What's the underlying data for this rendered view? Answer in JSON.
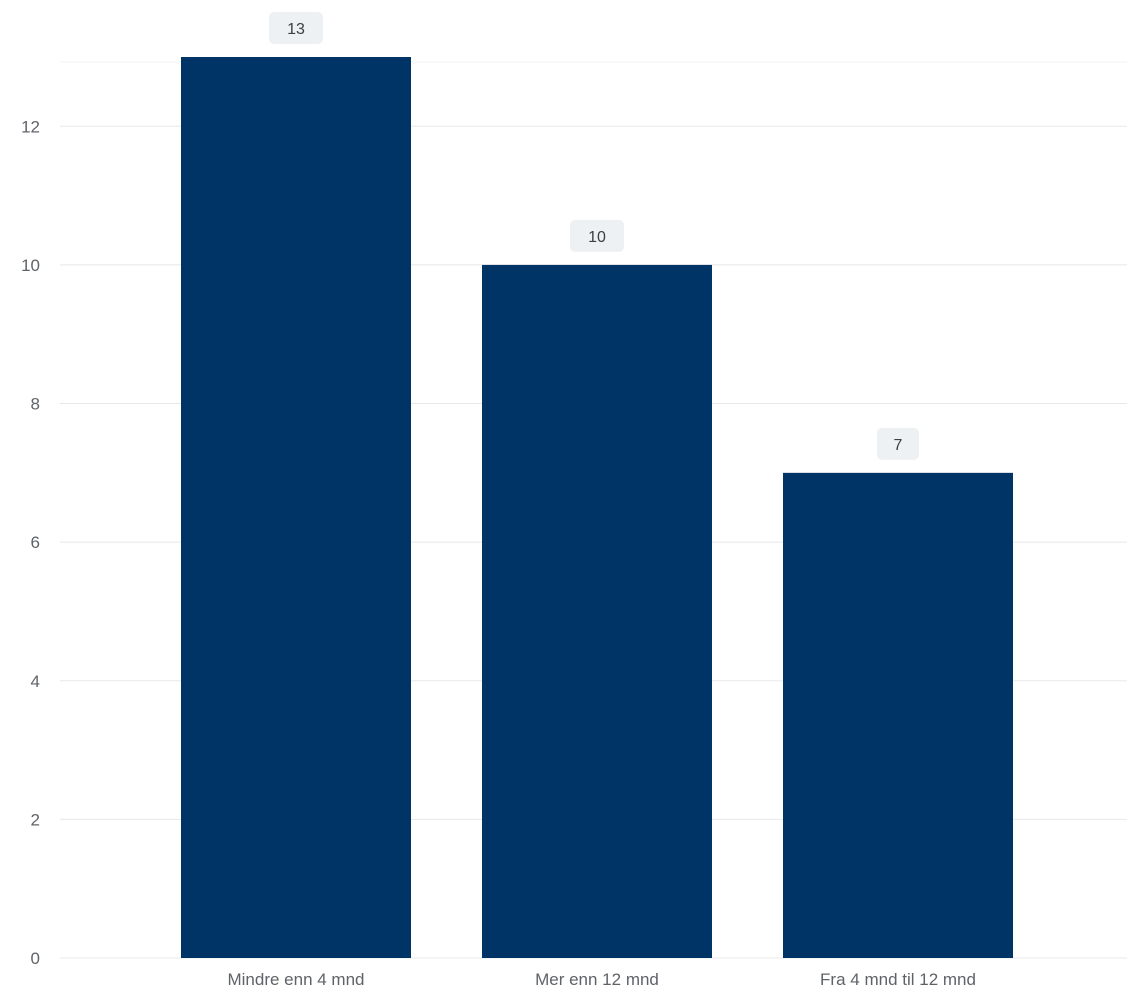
{
  "chart_data": {
    "type": "bar",
    "title": "",
    "xlabel": "",
    "ylabel": "",
    "categories": [
      "Mindre enn 4 mnd",
      "Mer enn 12 mnd",
      "Fra 4 mnd til 12 mnd"
    ],
    "values": [
      13,
      10,
      7
    ],
    "data_labels": [
      "13",
      "10",
      "7"
    ],
    "ylim": [
      0,
      13
    ],
    "yticks": [
      0,
      2,
      4,
      6,
      8,
      10,
      12
    ],
    "ytick_labels": [
      "0",
      "2",
      "4",
      "6",
      "8",
      "10",
      "12"
    ],
    "grid": true,
    "legend": "none",
    "colors": {
      "bar": "#003366",
      "grid": "#e8e8e8",
      "label_badge": "#eef1f4"
    }
  }
}
